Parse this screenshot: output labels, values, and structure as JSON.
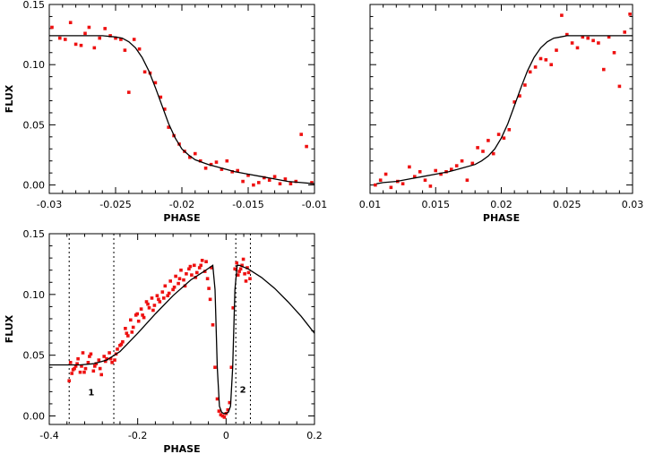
{
  "chart_data": [
    {
      "id": "top-left",
      "type": "scatter",
      "xlabel": "PHASE",
      "ylabel": "FLUX",
      "xlim": [
        -0.03,
        -0.01
      ],
      "ylim": [
        -0.007,
        0.15
      ],
      "xticks": [
        -0.03,
        -0.025,
        -0.02,
        -0.015,
        -0.01
      ],
      "xtick_labels": [
        "-0.03",
        "-0.025",
        "-0.02",
        "-0.015",
        "-0.01"
      ],
      "yticks": [
        0.0,
        0.05,
        0.1,
        0.15
      ],
      "ytick_labels": [
        "0.00",
        "0.05",
        "0.10",
        "0.15"
      ],
      "show_xlabel": true,
      "show_ylabel": true,
      "series": [
        {
          "kind": "points",
          "x": [
            -0.0298,
            -0.0292,
            -0.0288,
            -0.0284,
            -0.028,
            -0.0276,
            -0.0273,
            -0.027,
            -0.0266,
            -0.0262,
            -0.0258,
            -0.0254,
            -0.025,
            -0.0246,
            -0.0243,
            -0.024,
            -0.0236,
            -0.0232,
            -0.0228,
            -0.0224,
            -0.022,
            -0.0216,
            -0.0213,
            -0.021,
            -0.0206,
            -0.0202,
            -0.0198,
            -0.0194,
            -0.019,
            -0.0186,
            -0.0182,
            -0.0178,
            -0.0174,
            -0.017,
            -0.0166,
            -0.0162,
            -0.0158,
            -0.0154,
            -0.015,
            -0.0146,
            -0.0142,
            -0.0138,
            -0.0134,
            -0.013,
            -0.0126,
            -0.0122,
            -0.0118,
            -0.0114,
            -0.011,
            -0.0106,
            -0.0102
          ],
          "y": [
            0.131,
            0.122,
            0.121,
            0.135,
            0.117,
            0.116,
            0.126,
            0.131,
            0.114,
            0.122,
            0.13,
            0.124,
            0.122,
            0.121,
            0.112,
            0.077,
            0.121,
            0.113,
            0.094,
            0.093,
            0.085,
            0.073,
            0.063,
            0.048,
            0.041,
            0.034,
            0.028,
            0.023,
            0.026,
            0.02,
            0.014,
            0.017,
            0.019,
            0.013,
            0.02,
            0.011,
            0.012,
            0.003,
            0.008,
            0.0,
            0.002,
            0.006,
            0.004,
            0.007,
            0.001,
            0.005,
            0.001,
            0.003,
            0.042,
            0.032,
            0.002
          ]
        },
        {
          "kind": "line",
          "x": [
            -0.03,
            -0.029,
            -0.028,
            -0.027,
            -0.026,
            -0.025,
            -0.0245,
            -0.024,
            -0.0235,
            -0.023,
            -0.0225,
            -0.022,
            -0.0215,
            -0.021,
            -0.0205,
            -0.02,
            -0.0195,
            -0.019,
            -0.0185,
            -0.018,
            -0.017,
            -0.016,
            -0.015,
            -0.014,
            -0.013,
            -0.012,
            -0.011,
            -0.01
          ],
          "y": [
            0.124,
            0.124,
            0.124,
            0.124,
            0.124,
            0.123,
            0.122,
            0.119,
            0.114,
            0.106,
            0.095,
            0.081,
            0.066,
            0.051,
            0.039,
            0.03,
            0.025,
            0.021,
            0.019,
            0.017,
            0.014,
            0.011,
            0.009,
            0.007,
            0.005,
            0.003,
            0.002,
            0.001
          ]
        }
      ]
    },
    {
      "id": "top-right",
      "type": "scatter",
      "xlabel": "PHASE",
      "ylabel": "",
      "xlim": [
        0.01,
        0.03
      ],
      "ylim": [
        -0.007,
        0.15
      ],
      "xticks": [
        0.01,
        0.015,
        0.02,
        0.025,
        0.03
      ],
      "xtick_labels": [
        "0.01",
        "0.015",
        "0.02",
        "0.025",
        "0.03"
      ],
      "yticks": [
        0.0,
        0.05,
        0.1,
        0.15
      ],
      "ytick_labels": [],
      "show_xlabel": true,
      "show_ylabel": false,
      "series": [
        {
          "kind": "points",
          "x": [
            0.0104,
            0.0108,
            0.0112,
            0.0116,
            0.0121,
            0.0125,
            0.013,
            0.0134,
            0.0138,
            0.0142,
            0.0146,
            0.015,
            0.0154,
            0.0158,
            0.0162,
            0.0166,
            0.017,
            0.0174,
            0.0178,
            0.0182,
            0.0186,
            0.019,
            0.0194,
            0.0198,
            0.0202,
            0.0206,
            0.021,
            0.0214,
            0.0218,
            0.0222,
            0.0226,
            0.023,
            0.0234,
            0.0238,
            0.0242,
            0.0246,
            0.025,
            0.0254,
            0.0258,
            0.0262,
            0.0266,
            0.027,
            0.0274,
            0.0278,
            0.0282,
            0.0286,
            0.029,
            0.0294,
            0.0298
          ],
          "y": [
            0.0,
            0.004,
            0.009,
            -0.002,
            0.003,
            0.001,
            0.015,
            0.007,
            0.011,
            0.004,
            -0.001,
            0.012,
            0.009,
            0.011,
            0.013,
            0.016,
            0.02,
            0.004,
            0.018,
            0.031,
            0.028,
            0.037,
            0.026,
            0.042,
            0.039,
            0.046,
            0.069,
            0.074,
            0.083,
            0.094,
            0.098,
            0.105,
            0.104,
            0.1,
            0.112,
            0.141,
            0.125,
            0.118,
            0.114,
            0.123,
            0.122,
            0.12,
            0.118,
            0.096,
            0.123,
            0.11,
            0.082,
            0.127,
            0.142
          ]
        },
        {
          "kind": "line",
          "x": [
            0.0105,
            0.011,
            0.012,
            0.013,
            0.014,
            0.015,
            0.016,
            0.017,
            0.018,
            0.0185,
            0.019,
            0.0195,
            0.02,
            0.0205,
            0.021,
            0.0215,
            0.022,
            0.0225,
            0.023,
            0.0235,
            0.024,
            0.0245,
            0.025,
            0.026,
            0.027,
            0.028,
            0.029,
            0.03
          ],
          "y": [
            0.001,
            0.002,
            0.003,
            0.005,
            0.007,
            0.009,
            0.011,
            0.014,
            0.017,
            0.02,
            0.024,
            0.03,
            0.039,
            0.051,
            0.066,
            0.081,
            0.095,
            0.106,
            0.114,
            0.119,
            0.122,
            0.123,
            0.124,
            0.124,
            0.124,
            0.124,
            0.124,
            0.124
          ]
        }
      ]
    },
    {
      "id": "bottom",
      "type": "scatter",
      "xlabel": "PHASE",
      "ylabel": "FLUX",
      "xlim": [
        -0.4,
        0.2
      ],
      "ylim": [
        -0.007,
        0.15
      ],
      "xticks": [
        -0.4,
        -0.2,
        0.0,
        0.2
      ],
      "xtick_labels": [
        "-0.4",
        "-0.2",
        "0",
        "0.2"
      ],
      "yticks": [
        0.0,
        0.05,
        0.1,
        0.15
      ],
      "ytick_labels": [
        "0.00",
        "0.05",
        "0.10",
        "0.15"
      ],
      "show_xlabel": true,
      "show_ylabel": true,
      "vertical_markers": [
        -0.355,
        -0.254,
        0.022,
        0.055
      ],
      "annotations": [
        {
          "text": "1",
          "x": -0.305,
          "y": 0.017
        },
        {
          "text": "2",
          "x": 0.038,
          "y": 0.019
        }
      ],
      "series": [
        {
          "kind": "points",
          "x": [
            -0.352,
            -0.346,
            -0.34,
            -0.335,
            -0.33,
            -0.324,
            -0.318,
            -0.312,
            -0.306,
            -0.3,
            -0.294,
            -0.288,
            -0.282,
            -0.276,
            -0.27,
            -0.264,
            -0.258,
            -0.252,
            -0.246,
            -0.24,
            -0.234,
            -0.228,
            -0.222,
            -0.216,
            -0.21,
            -0.204,
            -0.198,
            -0.192,
            -0.186,
            -0.18,
            -0.174,
            -0.168,
            -0.162,
            -0.156,
            -0.15,
            -0.144,
            -0.138,
            -0.132,
            -0.126,
            -0.12,
            -0.114,
            -0.108,
            -0.102,
            -0.096,
            -0.09,
            -0.084,
            -0.078,
            -0.072,
            -0.066,
            -0.06,
            -0.054,
            -0.048,
            -0.042,
            -0.036,
            -0.03,
            -0.025,
            -0.02,
            -0.016,
            -0.012,
            -0.008,
            -0.004,
            0.0,
            0.004,
            0.008,
            0.012,
            0.016,
            0.02,
            0.024,
            0.03,
            0.036,
            0.042,
            0.048,
            0.054,
            -0.355,
            -0.349,
            -0.343,
            -0.337,
            -0.327,
            -0.321,
            -0.309,
            -0.297,
            -0.285,
            -0.273,
            -0.261,
            -0.249,
            -0.237,
            -0.225,
            -0.213,
            -0.201,
            -0.189,
            -0.177,
            -0.165,
            -0.153,
            -0.141,
            -0.129,
            -0.117,
            -0.105,
            -0.093,
            -0.081,
            -0.069,
            -0.057,
            -0.045,
            -0.039,
            -0.033,
            0.027,
            0.033,
            0.039,
            0.045,
            0.051
          ],
          "y": [
            0.044,
            0.038,
            0.041,
            0.047,
            0.036,
            0.052,
            0.039,
            0.044,
            0.051,
            0.037,
            0.043,
            0.046,
            0.034,
            0.049,
            0.047,
            0.052,
            0.044,
            0.046,
            0.055,
            0.058,
            0.061,
            0.072,
            0.066,
            0.079,
            0.073,
            0.083,
            0.078,
            0.088,
            0.081,
            0.094,
            0.089,
            0.097,
            0.091,
            0.099,
            0.094,
            0.102,
            0.107,
            0.099,
            0.111,
            0.104,
            0.115,
            0.109,
            0.12,
            0.112,
            0.117,
            0.121,
            0.116,
            0.124,
            0.118,
            0.122,
            0.128,
            0.119,
            0.113,
            0.096,
            0.075,
            0.04,
            0.014,
            0.004,
            0.001,
            0.0,
            -0.001,
            0.002,
            0.005,
            0.011,
            0.04,
            0.089,
            0.121,
            0.126,
            0.119,
            0.124,
            0.117,
            0.122,
            0.113,
            0.029,
            0.035,
            0.039,
            0.043,
            0.041,
            0.036,
            0.049,
            0.041,
            0.039,
            0.045,
            0.047,
            0.051,
            0.059,
            0.068,
            0.069,
            0.084,
            0.083,
            0.092,
            0.087,
            0.096,
            0.097,
            0.101,
            0.106,
            0.113,
            0.107,
            0.123,
            0.114,
            0.124,
            0.127,
            0.105,
            0.122,
            0.116,
            0.121,
            0.129,
            0.111,
            0.118
          ]
        },
        {
          "kind": "line",
          "x": [
            -0.4,
            -0.36,
            -0.33,
            -0.3,
            -0.27,
            -0.24,
            -0.2,
            -0.16,
            -0.12,
            -0.08,
            -0.05,
            -0.03,
            -0.025,
            -0.02,
            -0.015,
            -0.01,
            -0.005,
            0.0,
            0.005,
            0.01,
            0.015,
            0.02,
            0.025,
            0.03,
            0.05,
            0.08,
            0.11,
            0.14,
            0.17,
            0.2
          ],
          "y": [
            0.042,
            0.042,
            0.042,
            0.043,
            0.046,
            0.053,
            0.068,
            0.084,
            0.099,
            0.112,
            0.119,
            0.124,
            0.104,
            0.04,
            0.008,
            0.003,
            0.002,
            0.002,
            0.003,
            0.008,
            0.04,
            0.104,
            0.124,
            0.124,
            0.121,
            0.114,
            0.105,
            0.094,
            0.082,
            0.068
          ]
        }
      ]
    }
  ]
}
